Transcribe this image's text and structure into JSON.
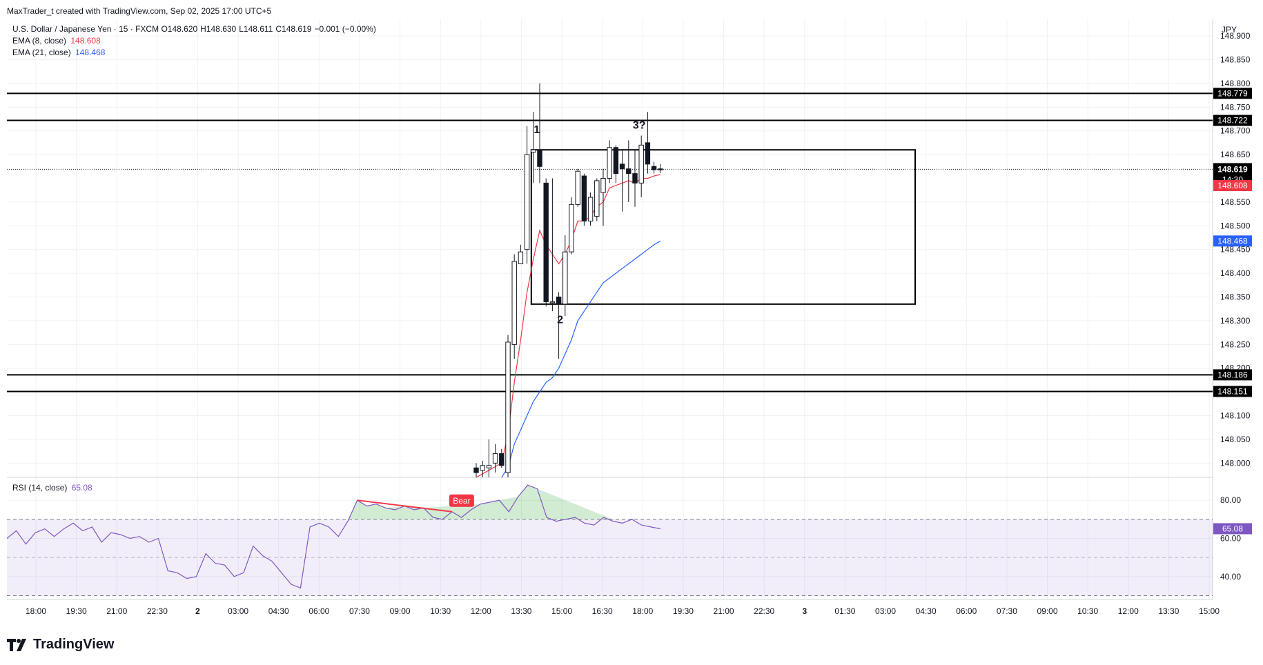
{
  "header": {
    "created_by": "MaxTrader_t created with TradingView.com, Sep 02, 2025 17:00 UTC+5"
  },
  "legend": {
    "symbol": "U.S. Dollar / Japanese Yen · 15 · FXCM",
    "ohlc": {
      "open": "O148.620",
      "high": "H148.630",
      "low": "L148.611",
      "close": "C148.619",
      "change": "−0.001 (−0.00%)"
    },
    "ema8": {
      "label": "EMA (8, close)",
      "value": "148.608",
      "color": "#f23645"
    },
    "ema21": {
      "label": "EMA (21, close)",
      "value": "148.468",
      "color": "#2962ff"
    },
    "rsi": {
      "label": "RSI (14, close)",
      "value": "65.08",
      "color": "#7e57c2"
    }
  },
  "currency": "JPY",
  "brand": "TradingView",
  "chart_data": {
    "type": "candlestick",
    "price_axis": {
      "ticks": [
        "148.900",
        "148.850",
        "148.800",
        "148.750",
        "148.700",
        "148.650",
        "148.550",
        "148.500",
        "148.450",
        "148.400",
        "148.350",
        "148.300",
        "148.250",
        "148.200",
        "148.100",
        "148.050",
        "148.000"
      ],
      "ylim": [
        147.97,
        148.935
      ]
    },
    "time_axis": {
      "ticks": [
        "18:00",
        "19:30",
        "21:00",
        "22:30",
        "2",
        "03:00",
        "04:30",
        "06:00",
        "07:30",
        "09:00",
        "10:30",
        "12:00",
        "13:30",
        "15:00",
        "16:30",
        "18:00",
        "19:30",
        "21:00",
        "22:30",
        "3",
        "01:30",
        "03:00",
        "04:30",
        "06:00",
        "07:30",
        "09:00",
        "10:30",
        "12:00",
        "13:30",
        "15:00"
      ],
      "bold_ticks": [
        "2",
        "3"
      ]
    },
    "candles": [
      {
        "o": 147.99,
        "h": 148.0,
        "l": 147.97,
        "c": 147.98
      },
      {
        "o": 147.985,
        "h": 148.005,
        "l": 147.97,
        "c": 147.995
      },
      {
        "o": 147.99,
        "h": 148.05,
        "l": 147.97,
        "c": 147.995
      },
      {
        "o": 148.0,
        "h": 148.04,
        "l": 147.98,
        "c": 148.02
      },
      {
        "o": 148.02,
        "h": 148.03,
        "l": 147.99,
        "c": 147.995
      },
      {
        "o": 147.98,
        "h": 148.27,
        "l": 147.97,
        "c": 148.255
      },
      {
        "o": 148.25,
        "h": 148.44,
        "l": 148.22,
        "c": 148.425
      },
      {
        "o": 148.42,
        "h": 148.46,
        "l": 148.42,
        "c": 148.445
      },
      {
        "o": 148.45,
        "h": 148.71,
        "l": 148.42,
        "c": 148.65
      },
      {
        "o": 148.655,
        "h": 148.74,
        "l": 148.59,
        "c": 148.66
      },
      {
        "o": 148.66,
        "h": 148.8,
        "l": 148.59,
        "c": 148.625
      },
      {
        "o": 148.59,
        "h": 148.6,
        "l": 148.33,
        "c": 148.34
      },
      {
        "o": 148.34,
        "h": 148.6,
        "l": 148.32,
        "c": 148.34
      },
      {
        "o": 148.35,
        "h": 148.36,
        "l": 148.22,
        "c": 148.335
      },
      {
        "o": 148.335,
        "h": 148.48,
        "l": 148.31,
        "c": 148.445
      },
      {
        "o": 148.445,
        "h": 148.56,
        "l": 148.44,
        "c": 148.545
      },
      {
        "o": 148.545,
        "h": 148.62,
        "l": 148.54,
        "c": 148.615
      },
      {
        "o": 148.605,
        "h": 148.61,
        "l": 148.5,
        "c": 148.51
      },
      {
        "o": 148.51,
        "h": 148.57,
        "l": 148.5,
        "c": 148.56
      },
      {
        "o": 148.52,
        "h": 148.6,
        "l": 148.51,
        "c": 148.595
      },
      {
        "o": 148.57,
        "h": 148.62,
        "l": 148.5,
        "c": 148.6
      },
      {
        "o": 148.6,
        "h": 148.68,
        "l": 148.59,
        "c": 148.665
      },
      {
        "o": 148.665,
        "h": 148.67,
        "l": 148.59,
        "c": 148.61
      },
      {
        "o": 148.63,
        "h": 148.66,
        "l": 148.53,
        "c": 148.62
      },
      {
        "o": 148.62,
        "h": 148.68,
        "l": 148.55,
        "c": 148.61
      },
      {
        "o": 148.61,
        "h": 148.66,
        "l": 148.54,
        "c": 148.59
      },
      {
        "o": 148.59,
        "h": 148.69,
        "l": 148.56,
        "c": 148.67
      },
      {
        "o": 148.675,
        "h": 148.74,
        "l": 148.61,
        "c": 148.63
      },
      {
        "o": 148.625,
        "h": 148.635,
        "l": 148.61,
        "c": 148.618
      },
      {
        "o": 148.62,
        "h": 148.63,
        "l": 148.611,
        "c": 148.619
      }
    ],
    "ema8": [
      [
        0,
        147.97
      ],
      [
        2,
        147.985
      ],
      [
        4,
        148.0
      ],
      [
        5,
        148.06
      ],
      [
        6,
        148.17
      ],
      [
        7,
        148.26
      ],
      [
        8,
        148.36
      ],
      [
        9,
        148.43
      ],
      [
        10,
        148.49
      ],
      [
        11,
        148.46
      ],
      [
        12,
        148.44
      ],
      [
        13,
        148.42
      ],
      [
        14,
        148.44
      ],
      [
        15,
        148.47
      ],
      [
        16,
        148.51
      ],
      [
        17,
        148.51
      ],
      [
        18,
        148.52
      ],
      [
        19,
        148.54
      ],
      [
        20,
        148.55
      ],
      [
        21,
        148.58
      ],
      [
        22,
        148.585
      ],
      [
        23,
        148.59
      ],
      [
        24,
        148.595
      ],
      [
        25,
        148.59
      ],
      [
        26,
        148.6
      ],
      [
        27,
        148.6
      ],
      [
        28,
        148.605
      ],
      [
        29,
        148.608
      ]
    ],
    "ema21": [
      [
        4,
        147.97
      ],
      [
        5,
        147.99
      ],
      [
        6,
        148.04
      ],
      [
        7,
        148.07
      ],
      [
        8,
        148.1
      ],
      [
        9,
        148.13
      ],
      [
        10,
        148.15
      ],
      [
        11,
        148.17
      ],
      [
        12,
        148.18
      ],
      [
        13,
        148.2
      ],
      [
        14,
        148.23
      ],
      [
        15,
        148.26
      ],
      [
        16,
        148.3
      ],
      [
        17,
        148.32
      ],
      [
        18,
        148.34
      ],
      [
        19,
        148.36
      ],
      [
        20,
        148.38
      ],
      [
        21,
        148.39
      ],
      [
        22,
        148.4
      ],
      [
        23,
        148.41
      ],
      [
        24,
        148.42
      ],
      [
        25,
        148.43
      ],
      [
        26,
        148.44
      ],
      [
        27,
        148.45
      ],
      [
        28,
        148.46
      ],
      [
        29,
        148.468
      ]
    ],
    "horizontal_levels": [
      {
        "price": 148.779,
        "label": "148.779"
      },
      {
        "price": 148.722,
        "label": "148.722"
      },
      {
        "price": 148.186,
        "label": "148.186"
      },
      {
        "price": 148.151,
        "label": "148.151"
      }
    ],
    "rectangle": {
      "price_top": 148.66,
      "price_bottom": 148.335
    },
    "current_price": {
      "price": 148.619,
      "label": "148.619",
      "countdown": "14:30"
    },
    "ema8_badge": {
      "price": 148.608,
      "label": "148.608"
    },
    "ema21_badge": {
      "price": 148.468,
      "label": "148.468"
    },
    "annotations": [
      {
        "text": "1",
        "price": 148.695
      },
      {
        "text": "2",
        "price": 148.295
      },
      {
        "text": "3?",
        "price": 148.705
      }
    ],
    "rsi": {
      "ticks": [
        "80.00",
        "60.00",
        "40.00"
      ],
      "ylim": [
        28,
        92
      ],
      "overbought": 70,
      "middle": 50,
      "oversold": 30,
      "current": "65.08",
      "values": [
        60,
        64,
        57,
        63,
        65,
        61,
        65,
        68,
        64,
        66,
        58,
        63,
        62,
        60,
        61,
        58,
        60,
        43,
        42,
        39,
        40,
        52,
        47,
        46,
        40,
        42,
        56,
        51,
        48,
        42,
        36,
        34,
        66,
        68,
        66,
        61,
        69,
        80,
        77,
        78,
        76,
        75,
        77,
        75,
        76,
        71,
        70,
        74,
        71,
        75,
        78,
        79,
        80,
        74,
        82,
        88,
        86,
        71,
        69,
        70,
        71,
        68,
        67,
        71,
        69,
        68,
        70,
        67,
        66,
        65.08
      ],
      "divergence": {
        "label": "Bear",
        "from": 37,
        "to": 47
      }
    }
  }
}
